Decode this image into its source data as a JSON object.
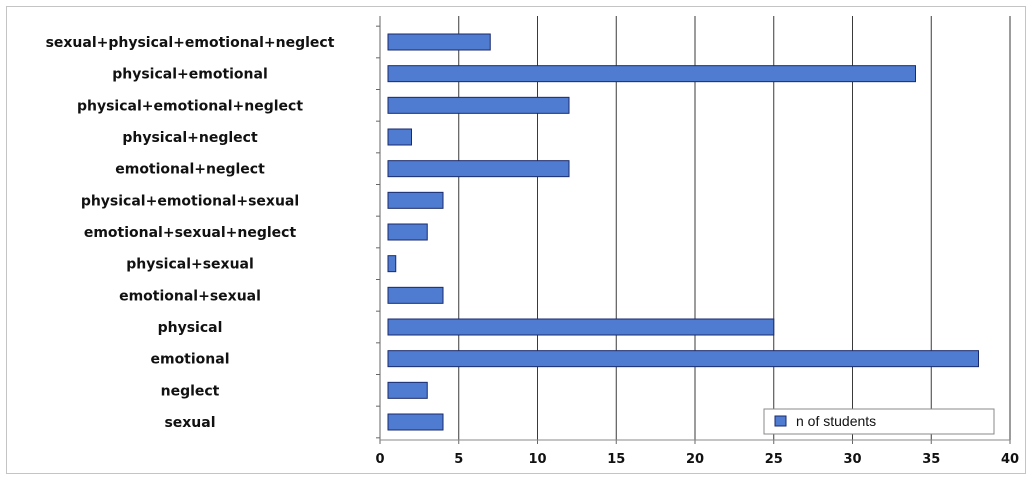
{
  "chart_data": {
    "type": "bar",
    "orientation": "horizontal",
    "categories": [
      "sexual+physical+emotional+neglect",
      "physical+emotional",
      "physical+emotional+neglect",
      "physical+neglect",
      "emotional+neglect",
      "physical+emotional+sexual",
      "emotional+sexual+neglect",
      "physical+sexual",
      "emotional+sexual",
      "physical",
      "emotional",
      "neglect",
      "sexual"
    ],
    "series": [
      {
        "name": "n of students",
        "color": "#4f7bd0",
        "values": [
          7,
          34,
          12,
          2,
          12,
          4,
          3,
          1,
          4,
          25,
          38,
          3,
          4
        ]
      }
    ],
    "xlim": [
      0,
      40
    ],
    "xticks": [
      "0",
      "5",
      "10",
      "15",
      "20",
      "25",
      "30",
      "35",
      "40"
    ],
    "grid": "vertical",
    "legend_position": "bottom-right",
    "title": "",
    "xlabel": "",
    "ylabel": ""
  }
}
